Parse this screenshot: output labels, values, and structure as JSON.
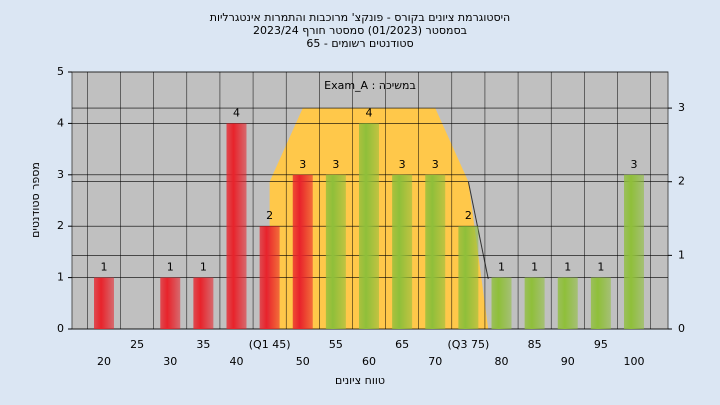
{
  "chart_data": {
    "type": "bar",
    "title": "היסטוגרמת ציונים בקורס - פונקצ' מרוכבות והתמרות אינטגרליות",
    "subtitle": "בסמסטר  (01/2023)  סמסטר חורף 2023/24",
    "subtitle2": "סטודנטים רשומים - 65",
    "annotation": "Exam_A : במשיכה",
    "x_label": "טווח ציונים",
    "y_label": "מספר סטודנטים",
    "categories": [
      "20",
      "25",
      "30",
      "35",
      "40",
      "(Q1 45)",
      "50",
      "55",
      "60",
      "65",
      "70",
      "(Q3 75)",
      "80",
      "85",
      "90",
      "95",
      "100"
    ],
    "values": [
      1,
      0,
      1,
      1,
      4,
      2,
      3,
      3,
      4,
      3,
      3,
      2,
      1,
      1,
      1,
      1,
      3
    ],
    "colors": [
      "#e8232b",
      "#e8232b",
      "#e8232b",
      "#e8232b",
      "#e8232b",
      "#e8232b",
      "#e8232b",
      "#8fbf3a",
      "#8fbf3a",
      "#8fbf3a",
      "#8fbf3a",
      "#8fbf3a",
      "#8fbf3a",
      "#8fbf3a",
      "#8fbf3a",
      "#8fbf3a",
      "#8fbf3a"
    ],
    "series": [
      {
        "color": "#ffc84a",
        "axis": "y2",
        "values": [
          null,
          null,
          null,
          null,
          null,
          2,
          3,
          3,
          3,
          3,
          3,
          2,
          null,
          null,
          null,
          null,
          null
        ]
      }
    ],
    "ylim": [
      0,
      5
    ],
    "yticks": [
      0,
      1,
      2,
      3,
      4,
      5
    ],
    "y2lim": [
      0,
      3.49
    ],
    "y2ticks": [
      0,
      1,
      2,
      3
    ],
    "grid": true
  }
}
